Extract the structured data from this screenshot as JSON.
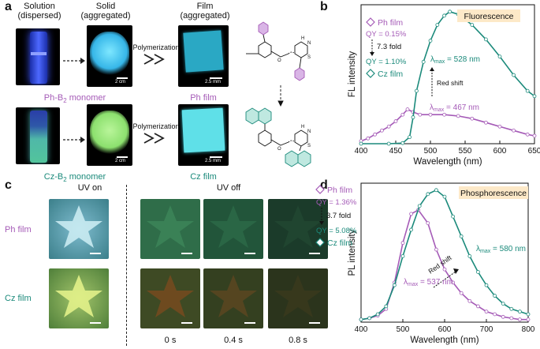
{
  "panel_a": {
    "label": "a",
    "header_solution": [
      "Solution",
      "(dispersed)"
    ],
    "header_solid": [
      "Solid",
      "(aggregated)"
    ],
    "header_film": [
      "Film",
      "(aggregated)"
    ],
    "polymerization": "Polymerization",
    "scale_2cm": "2 cm",
    "scale_25mm": "2.5 mm",
    "ph_monomer_name": "Ph-B",
    "ph_monomer_sub": "2",
    "ph_monomer_suffix": " monomer",
    "cz_monomer_name": "Cz-B",
    "cz_monomer_sub": "2",
    "cz_monomer_suffix": " monomer",
    "ph_film": "Ph film",
    "cz_film": "Cz film",
    "chem_labels": {
      "H": "H",
      "N": "N",
      "S": "S",
      "O": "O"
    }
  },
  "panel_b": {
    "label": "b",
    "legend_ph": "Ph film",
    "legend_cz": "Cz film",
    "qy_ph": "QY = 0.15%",
    "fold": "7.3 fold",
    "qy_cz": "QY = 1.10%",
    "badge": "Fluorescence",
    "lambda_cz": "= 528 nm",
    "lambda_ph": "= 467 nm",
    "red_shift": "Red shift"
  },
  "panel_c": {
    "label": "c",
    "uv_on": "UV on",
    "uv_off": "UV off",
    "ph_film": "Ph film",
    "cz_film": "Cz film",
    "times": [
      "0 s",
      "0.4 s",
      "0.8 s"
    ]
  },
  "panel_d": {
    "label": "d",
    "legend_ph": "Ph film",
    "legend_cz": "Cz film",
    "qy_ph": "QY = 1.36%",
    "fold": "3.7 fold",
    "qy_cz": "QY = 5.08%",
    "badge": "Phosphorescence",
    "lambda_cz": "= 580 nm",
    "lambda_ph": "= 537 nm",
    "red_shift": "Red shift"
  },
  "lambda_symbol": "λ",
  "lambda_sub": "max",
  "colors": {
    "ph": "#a55bb7",
    "cz": "#1b8a7b",
    "badge": "#fde9c8"
  },
  "chart_data": [
    {
      "type": "line",
      "title": "",
      "xlabel": "Wavelength (nm)",
      "ylabel": "FL intensity",
      "xlim": [
        400,
        650
      ],
      "xticks": [
        400,
        450,
        500,
        550,
        600,
        650
      ],
      "yticks": [],
      "series": [
        {
          "name": "Ph film",
          "x": [
            400,
            410,
            420,
            430,
            440,
            450,
            460,
            467,
            475,
            485,
            500,
            520,
            540,
            560,
            580,
            600,
            620,
            640,
            650
          ],
          "y": [
            0.02,
            0.04,
            0.07,
            0.1,
            0.13,
            0.17,
            0.22,
            0.26,
            0.24,
            0.22,
            0.22,
            0.22,
            0.21,
            0.19,
            0.16,
            0.13,
            0.1,
            0.07,
            0.06
          ]
        },
        {
          "name": "Cz film",
          "x": [
            400,
            440,
            460,
            470,
            475,
            480,
            490,
            500,
            510,
            520,
            528,
            540,
            560,
            580,
            600,
            620,
            640,
            650
          ],
          "y": [
            0,
            0,
            0.005,
            0.05,
            0.2,
            0.4,
            0.62,
            0.78,
            0.9,
            0.97,
            1.0,
            0.98,
            0.9,
            0.79,
            0.66,
            0.52,
            0.4,
            0.36
          ]
        }
      ]
    },
    {
      "type": "line",
      "title": "",
      "xlabel": "Wavelength (nm)",
      "ylabel": "PL intensity",
      "xlim": [
        400,
        800
      ],
      "xticks": [
        400,
        500,
        600,
        700,
        800
      ],
      "yticks": [],
      "series": [
        {
          "name": "Ph film",
          "x": [
            400,
            420,
            440,
            460,
            480,
            500,
            520,
            537,
            560,
            580,
            600,
            620,
            640,
            660,
            680,
            700,
            720,
            740,
            760,
            780,
            800
          ],
          "y": [
            0.02,
            0.03,
            0.05,
            0.1,
            0.3,
            0.6,
            0.82,
            0.85,
            0.75,
            0.55,
            0.4,
            0.3,
            0.22,
            0.16,
            0.12,
            0.08,
            0.06,
            0.04,
            0.03,
            0.02,
            0.02
          ]
        },
        {
          "name": "Cz film",
          "x": [
            400,
            420,
            440,
            460,
            480,
            500,
            520,
            540,
            560,
            580,
            600,
            620,
            640,
            660,
            680,
            700,
            720,
            740,
            760,
            780,
            800
          ],
          "y": [
            0.02,
            0.03,
            0.06,
            0.12,
            0.28,
            0.5,
            0.7,
            0.88,
            0.97,
            1.0,
            0.95,
            0.8,
            0.65,
            0.5,
            0.38,
            0.28,
            0.2,
            0.14,
            0.1,
            0.08,
            0.06
          ]
        }
      ]
    }
  ]
}
